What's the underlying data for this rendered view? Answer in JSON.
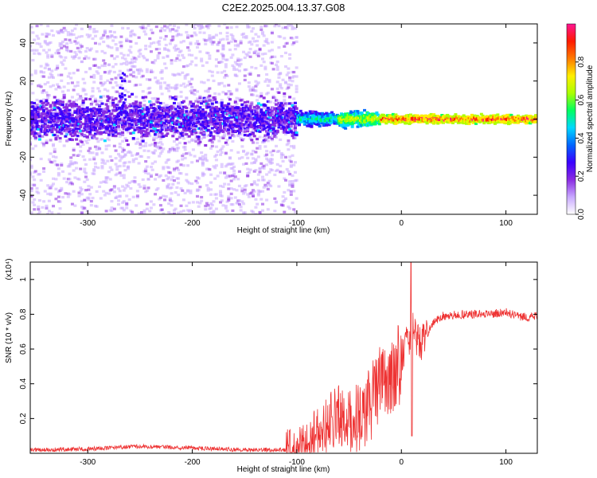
{
  "title": "C2E2.2025.004.13.37.G08",
  "chart_data": [
    {
      "type": "heatmap",
      "xlabel": "Height of straight line (km)",
      "ylabel": "Frequency (Hz)",
      "xlim": [
        -355,
        130
      ],
      "ylim": [
        -50,
        50
      ],
      "xticks": [
        -300,
        -200,
        -100,
        0,
        100
      ],
      "yticks": [
        -40,
        -20,
        0,
        20,
        40
      ],
      "colorbar": {
        "label": "Normalized spectral amplitude",
        "range": [
          0.0,
          1.0
        ],
        "ticks": [
          0.0,
          0.2,
          0.4,
          0.6,
          0.8
        ],
        "tick_labels": [
          "0.0",
          "0.2",
          "0.4",
          "0.6",
          "0.8"
        ],
        "colors": [
          "#ffffff",
          "#c8a8ff",
          "#8a2be2",
          "#3a00ff",
          "#0066ff",
          "#00d8ff",
          "#00ff60",
          "#aaff00",
          "#ffee00",
          "#ff7a00",
          "#ff1a00",
          "#ff1493"
        ]
      },
      "features": [
        {
          "description": "noisy broadband scatter",
          "x_range": [
            -355,
            -100
          ],
          "freq_range": [
            -50,
            50
          ]
        },
        {
          "description": "concentrated signal near 0 Hz",
          "x_range": [
            -100,
            130
          ],
          "center_freq": 0
        }
      ]
    },
    {
      "type": "line",
      "xlabel": "Height of straight line (km)",
      "ylabel": "SNR (10 * v/v)",
      "y_scale_label": "(x10⁴)",
      "xlim": [
        -355,
        130
      ],
      "ylim": [
        0,
        1.1
      ],
      "xticks": [
        -300,
        -200,
        -100,
        0,
        100
      ],
      "yticks": [
        0.2,
        0.4,
        0.6,
        0.8,
        1
      ],
      "series": [
        {
          "name": "SNR",
          "color": "#ee3333",
          "x": [
            -355,
            -300,
            -250,
            -200,
            -150,
            -100,
            -90,
            -80,
            -70,
            -60,
            -50,
            -40,
            -30,
            -20,
            -10,
            0,
            5,
            10,
            20,
            30,
            40,
            60,
            80,
            100,
            120,
            130
          ],
          "y": [
            0.02,
            0.025,
            0.04,
            0.03,
            0.02,
            0.02,
            0.07,
            0.12,
            0.17,
            0.22,
            0.2,
            0.2,
            0.28,
            0.4,
            0.45,
            0.53,
            0.62,
            0.72,
            0.62,
            0.75,
            0.79,
            0.8,
            0.8,
            0.81,
            0.78,
            0.79
          ]
        }
      ]
    }
  ]
}
